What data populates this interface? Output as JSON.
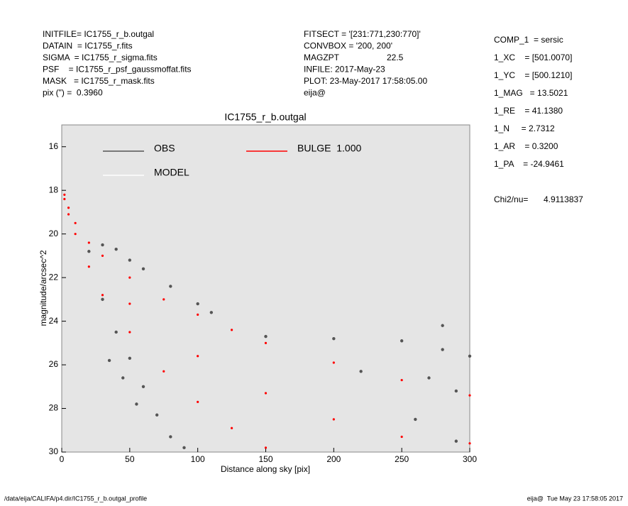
{
  "header": {
    "left": [
      "INITFILE= IC1755_r_b.outgal",
      "DATAIN  = IC1755_r.fits",
      "SIGMA  = IC1755_r_sigma.fits",
      "PSF    = IC1755_r_psf_gaussmoffat.fits",
      "MASK   = IC1755_r_mask.fits",
      "pix (\") =  0.3960"
    ],
    "middle": [
      "FITSECT = '[231:771,230:770]'",
      "CONVBOX = '200, 200'",
      "MAGZPT",
      "INFILE: 2017-May-23",
      "PLOT: 23-May-2017 17:58:05.00",
      "eija@"
    ],
    "magzpt": "22.5",
    "right": [
      "COMP_1  = sersic",
      "1_XC    = [501.0070]",
      "1_YC    = [500.1210]",
      "1_MAG   = 13.5021",
      "1_RE    = 41.1380",
      "1_N     = 2.7312",
      "1_AR    = 0.3200",
      "1_PA    = -24.9461"
    ],
    "chi_label": "Chi2/nu=",
    "chi_value": "4.9113837"
  },
  "footer": {
    "left": "/data/eija/CALIFA/p4.dir/IC1755_r_b.outgal_profile",
    "right": "eija@  Tue May 23 17:58:05 2017"
  },
  "chart_data": {
    "type": "scatter",
    "title": "IC1755_r_b.outgal",
    "xlabel": "Distance along sky [pix]",
    "ylabel": "magnitude/arcsec^2",
    "xlim": [
      0,
      300
    ],
    "ylim": [
      30,
      15
    ],
    "xticks": [
      0,
      50,
      100,
      150,
      200,
      250,
      300
    ],
    "yticks": [
      16,
      18,
      20,
      22,
      24,
      26,
      28,
      30
    ],
    "series": [
      {
        "name": "OBS",
        "color": "#555555",
        "x": [
          20,
          30,
          40,
          50,
          60,
          80,
          100,
          110,
          30,
          40,
          50,
          60,
          70,
          80,
          90,
          55,
          150,
          200,
          250,
          280,
          300,
          220,
          270,
          290,
          280,
          260,
          290,
          45,
          35
        ],
        "values": [
          20.8,
          20.5,
          20.7,
          21.2,
          21.6,
          22.4,
          23.2,
          23.6,
          23,
          24.5,
          25.7,
          27,
          28.3,
          29.3,
          29.8,
          27.8,
          24.7,
          24.8,
          24.9,
          25.3,
          25.6,
          26.3,
          26.6,
          27.2,
          24.2,
          28.5,
          29.5,
          26.6,
          25.8
        ]
      },
      {
        "name": "MODEL",
        "color": "#ffffff",
        "x": [],
        "values": []
      },
      {
        "name": "BULGE  1.000",
        "color": "#ff0000",
        "x": [
          2,
          2,
          5,
          5,
          10,
          10,
          20,
          20,
          30,
          30,
          50,
          50,
          50,
          75,
          75,
          100,
          100,
          100,
          125,
          125,
          150,
          150,
          150,
          200,
          200,
          250,
          250,
          300,
          300
        ],
        "values": [
          18.2,
          18.4,
          18.8,
          19.1,
          19.5,
          20,
          20.4,
          21.5,
          21,
          22.8,
          22,
          23.2,
          24.5,
          23,
          26.3,
          23.7,
          25.6,
          27.7,
          24.4,
          28.9,
          25,
          27.3,
          29.8,
          25.9,
          28.5,
          26.7,
          29.3,
          27.4,
          29.6
        ]
      }
    ]
  }
}
